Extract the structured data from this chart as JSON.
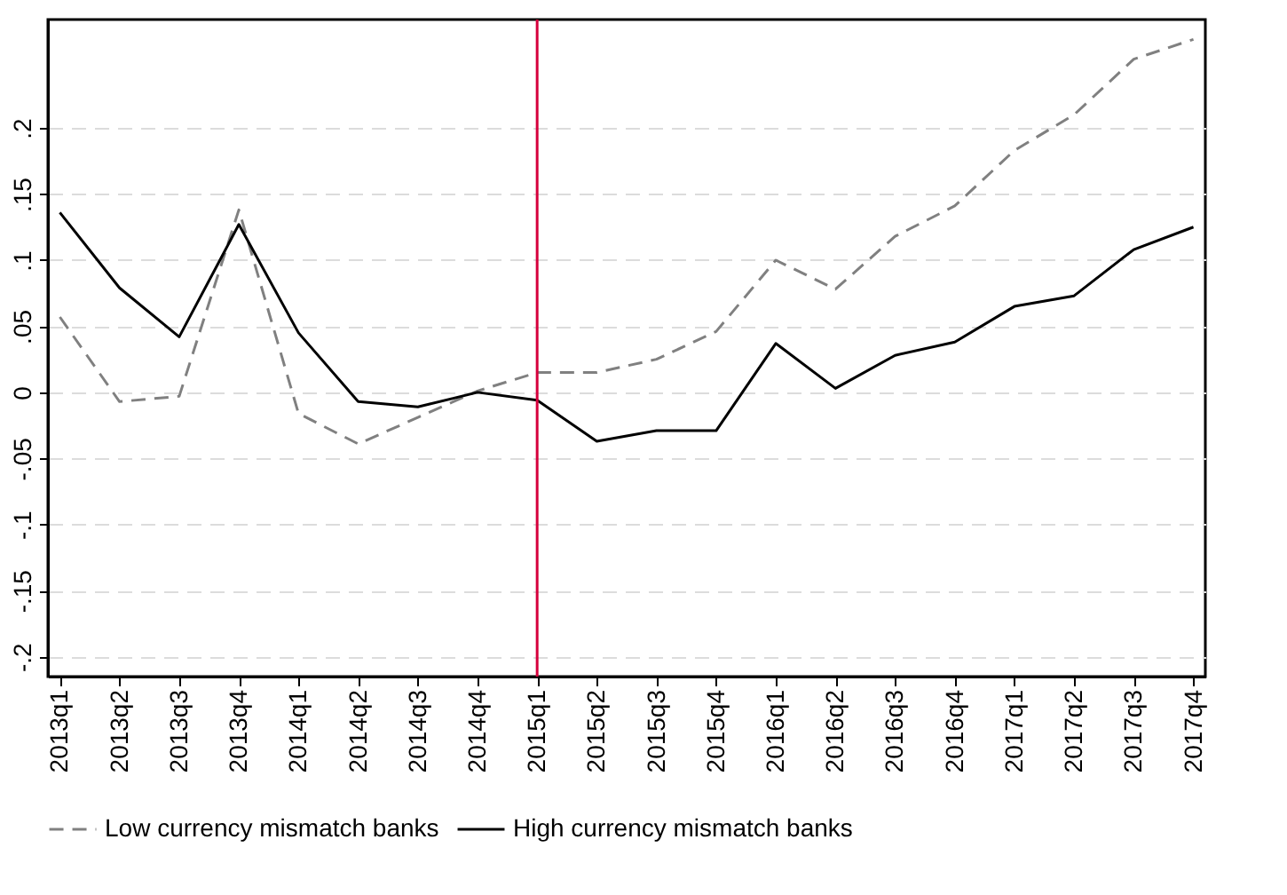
{
  "chart_data": {
    "type": "line",
    "categories": [
      "2013q1",
      "2013q2",
      "2013q3",
      "2013q4",
      "2014q1",
      "2014q2",
      "2014q3",
      "2014q4",
      "2015q1",
      "2015q2",
      "2015q3",
      "2015q4",
      "2016q1",
      "2016q2",
      "2016q3",
      "2016q4",
      "2017q1",
      "2017q2",
      "2017q3",
      "2017q4"
    ],
    "series": [
      {
        "name": "Low currency mismatch banks",
        "color": "#808080",
        "line_style": "dashed",
        "values": [
          0.057,
          -0.007,
          -0.003,
          0.138,
          -0.016,
          -0.039,
          -0.019,
          0.001,
          0.015,
          0.015,
          0.025,
          0.046,
          0.1,
          0.078,
          0.118,
          0.141,
          0.183,
          0.21,
          0.252,
          0.267
        ]
      },
      {
        "name": "High currency mismatch banks",
        "color": "#000000",
        "line_style": "solid",
        "values": [
          0.136,
          0.079,
          0.042,
          0.127,
          0.045,
          -0.007,
          -0.011,
          0.0,
          -0.006,
          -0.037,
          -0.029,
          -0.029,
          0.037,
          0.003,
          0.028,
          0.038,
          0.065,
          0.073,
          0.108,
          0.125
        ]
      }
    ],
    "ylim": [
      -0.215,
      0.282
    ],
    "yticks": [
      {
        "value": -0.2,
        "label": "-.2"
      },
      {
        "value": -0.15,
        "label": "-.15"
      },
      {
        "value": -0.1,
        "label": "-.1"
      },
      {
        "value": -0.05,
        "label": "-.05"
      },
      0,
      {
        "value": 0.05,
        "label": ".05"
      },
      {
        "value": 0.1,
        "label": ".1"
      },
      {
        "value": 0.15,
        "label": ".15"
      },
      {
        "value": 0.2,
        "label": ".2"
      }
    ],
    "ref_lines": [
      {
        "axis": "x",
        "value": "2015q1",
        "color": "#d6003c"
      }
    ],
    "grid": "y",
    "legend": "bottom",
    "marker": "none"
  }
}
